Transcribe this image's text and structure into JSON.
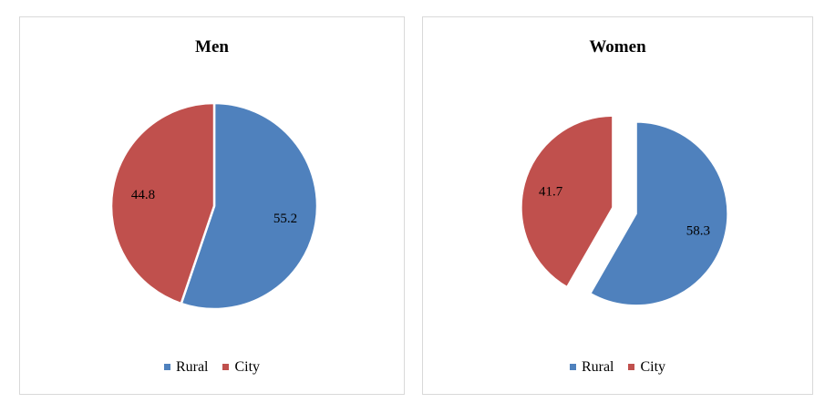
{
  "colors": {
    "rural": "#4f81bd",
    "city": "#c0504d"
  },
  "chart_data": [
    {
      "type": "pie",
      "title": "Men",
      "categories": [
        "Rural",
        "City"
      ],
      "values": [
        55.2,
        44.8
      ],
      "data_labels": [
        "55.2",
        "44.8"
      ],
      "exploded": [],
      "legend": {
        "position": "bottom",
        "entries": [
          "Rural",
          "City"
        ]
      }
    },
    {
      "type": "pie",
      "title": "Women",
      "categories": [
        "Rural",
        "City"
      ],
      "values": [
        58.3,
        41.7
      ],
      "data_labels": [
        "58.3",
        "41.7"
      ],
      "exploded": [
        "Rural",
        "City"
      ],
      "legend": {
        "position": "bottom",
        "entries": [
          "Rural",
          "City"
        ]
      }
    }
  ]
}
